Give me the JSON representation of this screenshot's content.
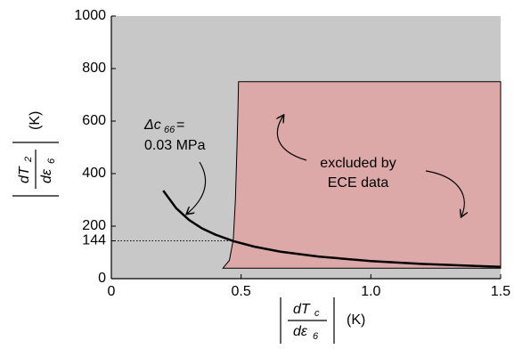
{
  "chart_data": {
    "type": "line",
    "xlim": [
      0,
      1.5
    ],
    "ylim": [
      0,
      1000
    ],
    "xticks": [
      0,
      {
        "value": 0.5,
        "label": "0.5"
      },
      {
        "value": 1.0,
        "label": "1.0"
      },
      {
        "value": 1.5,
        "label": "1.5"
      }
    ],
    "yticks": [
      0,
      144,
      200,
      400,
      600,
      800,
      1000
    ],
    "background": "#c8c8c8",
    "xlabel": {
      "numerator": "dT",
      "numerator_sub": "c",
      "denominator": "dε",
      "denominator_sub": "6",
      "unit": "(K)"
    },
    "ylabel": {
      "numerator": "dT",
      "numerator_sub": "2",
      "denominator": "dε",
      "denominator_sub": "6",
      "unit": "(K)"
    },
    "series": [
      {
        "color": "#000000",
        "x": [
          0.2,
          0.25,
          0.3,
          0.35,
          0.4,
          0.47,
          0.55,
          0.65,
          0.8,
          1.0,
          1.2,
          1.5
        ],
        "values": [
          335,
          268,
          223,
          191,
          168,
          143,
          122,
          103,
          84,
          67,
          56,
          45
        ]
      }
    ],
    "excluded_region": {
      "color": "#dca8a8",
      "x": [
        0.43,
        0.455,
        0.47,
        0.478,
        0.484,
        0.488,
        0.49,
        1.5,
        1.5
      ],
      "values": [
        40,
        70,
        150,
        300,
        500,
        650,
        750,
        750,
        40
      ]
    },
    "reference_line": {
      "y": 144,
      "x": [
        0,
        0.47
      ]
    },
    "annotations": {
      "delta_symbol": "Δc",
      "delta_sub": "66",
      "delta_eq": "=",
      "delta_value": "0.03 MPa",
      "excluded_line1": "excluded by",
      "excluded_line2": "ECE data"
    }
  }
}
